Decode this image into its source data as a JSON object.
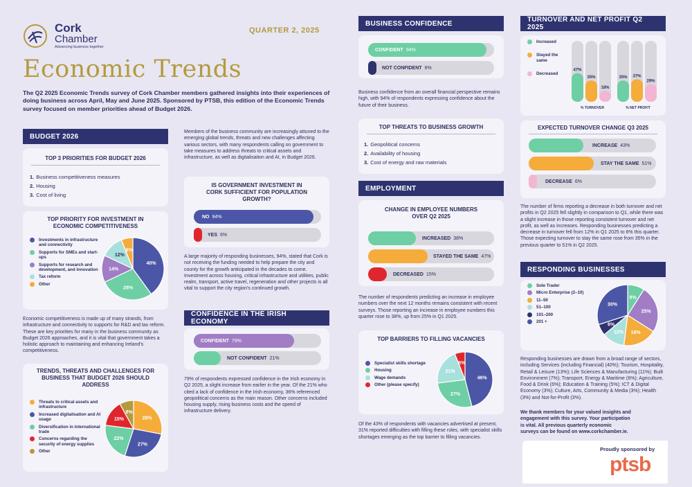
{
  "logo": {
    "line1": "Cork",
    "line2": "Chamber",
    "tagline": "Advancing business together"
  },
  "quarter": "QUARTER 2, 2025",
  "title": "Economic Trends",
  "intro": "The Q2 2025 Economic Trends survey of Cork Chamber members gathered insights into their experiences of doing business across April, May and June 2025. Sponsored by PTSB, this edition of the Economic Trends survey focused on member priorities ahead of Budget 2026.",
  "budget": {
    "header": "BUDGET 2026",
    "top3_title": "TOP 3 PRIORITIES FOR BUDGET 2026",
    "top3": [
      "Business competitiveness measures",
      "Housing",
      "Cost of living"
    ],
    "priority_title": "TOP PRIORITY FOR INVESTMENT IN ECONOMIC COMPETITIVENESS",
    "priority_legend": [
      "Investments in infrastructure and connectivity",
      "Supports for SMEs and start-ups",
      "Supports for research and development, and innovation",
      "Tax reform",
      "Other"
    ],
    "priority_values": [
      40,
      28,
      14,
      12,
      6
    ],
    "priority_labels": [
      "40%",
      "28%",
      "14%",
      "12%",
      "6%"
    ],
    "text": "Economic competitiveness is made up of many strands, from infrastructure and connectivity to supports for R&D and tax reform. These are key priorities for many in the business community as Budget 2026 approaches, and it is vital that government takes a holistic approach to maintaining and enhancing Ireland's competitiveness.",
    "trends_title": "TRENDS, THREATS AND CHALLENGES FOR BUSINESS THAT BUDGET 2026 SHOULD ADDRESS",
    "trends_legend": [
      "Threats to critical assets and infrastructure",
      "Increased digitalisation and AI usage",
      "Diversification in international trade",
      "Concerns regarding the security of energy supplies",
      "Other"
    ],
    "trends_values": [
      28,
      27,
      22,
      15,
      8
    ],
    "trends_labels": [
      "28%",
      "27%",
      "22%",
      "15%",
      "8%"
    ]
  },
  "col2": {
    "intro": "Members of the business community are increasingly attuned to the emerging global trends, threats and new challenges affecting various sectors, with many respondents calling on government to take measures to address threats to critical assets and infrastructure, as well as digitalisation and AI, in Budget 2026.",
    "gov_title": "IS GOVERNMENT INVESTMENT IN CORK SUFFICIENT FOR POPULATION GROWTH?",
    "gov_no": "NO",
    "gov_no_val": "94%",
    "gov_yes": "YES",
    "gov_yes_val": "6%",
    "gov_text": "A large majority of responding businesses, 94%, stated that Cork is not receiving the funding needed to help prepare the city and county for the growth anticipated in the decades to come. Investment across housing, critical infrastructure and utilities, public realm, transport, active travel, regeneration and other projects is all vital to support the city region's continued growth.",
    "conf_header": "CONFIDENCE IN THE IRISH ECONOMY",
    "conf": "CONFIDENT",
    "conf_val": "79%",
    "notconf": "NOT CONFIDENT",
    "notconf_val": "21%",
    "conf_text": "79% of respondents expressed confidence in the Irish economy in Q2 2025, a slight increase from earlier in the year. Of the 21% who cited a lack of confidence in the Irish economy, 36% referenced geopolitical concerns as the main reason. Other concerns included housing supply, rising business costs and the speed of infrastructure delivery."
  },
  "col3": {
    "bc_header": "BUSINESS CONFIDENCE",
    "bc_conf": "CONFIDENT",
    "bc_conf_val": "94%",
    "bc_not": "NOT CONFIDENT",
    "bc_not_val": "6%",
    "bc_text": "Business confidence from an overall financial perspective remains high, with 94% of respondents expressing confidence about the future of their business.",
    "threats_title": "TOP THREATS TO BUSINESS GROWTH",
    "threats": [
      "Geopolitical concerns",
      "Availability of housing",
      "Cost of energy and raw materials"
    ],
    "emp_header": "EMPLOYMENT",
    "emp_title": "CHANGE IN EMPLOYEE NUMBERS OVER Q2 2025",
    "emp_inc": "INCREASED",
    "emp_inc_val": "38%",
    "emp_same": "STAYED THE SAME",
    "emp_same_val": "47%",
    "emp_dec": "DECREASED",
    "emp_dec_val": "15%",
    "emp_text": "The number of respondents predicting an increase in employee numbers over the next 12 months remains consistent with recent surveys. Those reporting an increase in employee numbers this quarter rose to 38%, up from 25% in Q1 2025.",
    "barriers_title": "TOP BARRIERS TO FILLING VACANCIES",
    "barriers_legend": [
      "Specialist skills shortage",
      "Housing",
      "Wage demands",
      "Other (please specify)"
    ],
    "barriers_values": [
      46,
      27,
      21,
      6
    ],
    "barriers_labels": [
      "46%",
      "27%",
      "21%",
      "6%"
    ],
    "barriers_text": "Of the 43% of respondents with vacancies advertised at present, 31% reported difficulties with filling these roles, with specialist skills shortages emerging as the top barrier to filling vacancies."
  },
  "col4": {
    "tn_header": "TURNOVER AND NET PROFIT Q2 2025",
    "tn_legend": [
      "Increased",
      "Stayed the same",
      "Decreased"
    ],
    "tn_turnover": [
      47,
      35,
      18
    ],
    "tn_profit": [
      35,
      37,
      29
    ],
    "tn_turnover_labels": [
      "47%",
      "35%",
      "18%"
    ],
    "tn_profit_labels": [
      "35%",
      "37%",
      "29%"
    ],
    "tn_xlabels": [
      "% TURNOVER",
      "% NET PROFIT"
    ],
    "exp_title": "EXPECTED TURNOVER CHANGE Q3 2025",
    "exp_inc": "INCREASE",
    "exp_inc_val": "43%",
    "exp_same": "STAY THE SAME",
    "exp_same_val": "51%",
    "exp_dec": "DECREASE",
    "exp_dec_val": "6%",
    "tn_text": "The number of firms reporting a decrease in both turnover and net profits in Q2 2025 fell slightly in comparison to Q1, while there was a slight increase in those reporting consistent turnover and net profit, as well as increases. Responding businesses predicting a decrease in turnover fell from 12% in Q1 2025 to 6% this quarter. Those expecting turnover to stay the same rose from 35% in the previous quarter to 51% in Q2 2025.",
    "rb_header": "RESPONDING BUSINESSES",
    "rb_legend": [
      "Sole Trader",
      "Micro Enterprise (2–10)",
      "11–50",
      "51–100",
      "101–200",
      "201 +"
    ],
    "rb_values": [
      9,
      25,
      18,
      12,
      6,
      30
    ],
    "rb_labels": [
      "9%",
      "25%",
      "18%",
      "12%",
      "6%",
      "30%"
    ],
    "rb_text": "Responding businesses are drawn from a broad range of sectors, including Services (including Financial) (40%); Tourism, Hospitality, Retail & Leisure (13%); Life Sciences & Manufacturing (11%); Built Environment (7%); Transport, Energy & Maritime (6%); Agriculture, Food & Drink (6%); Education & Training (5%); ICT & Digital Economy (3%); Culture, Arts, Community & Media (3%); Health (3%) and Not-for-Profit (3%).",
    "thanks": "We thank members for your valued insights and engagement with this survey. Your participation is vital. All previous quarterly economic surveys can be found on www.corkchamber.ie.",
    "sponsor": "Proudly sponsored by",
    "ptsb": "ptsb"
  },
  "colors": {
    "navy": "#2e3370",
    "blue": "#4b56a6",
    "green": "#6dcfa3",
    "purple": "#a07dc4",
    "teal": "#a8e0dc",
    "orange": "#f5ac3a",
    "red": "#e0262d",
    "pink": "#f2b6d4",
    "gold": "#b49a3d",
    "grey": "#d8d7de"
  }
}
